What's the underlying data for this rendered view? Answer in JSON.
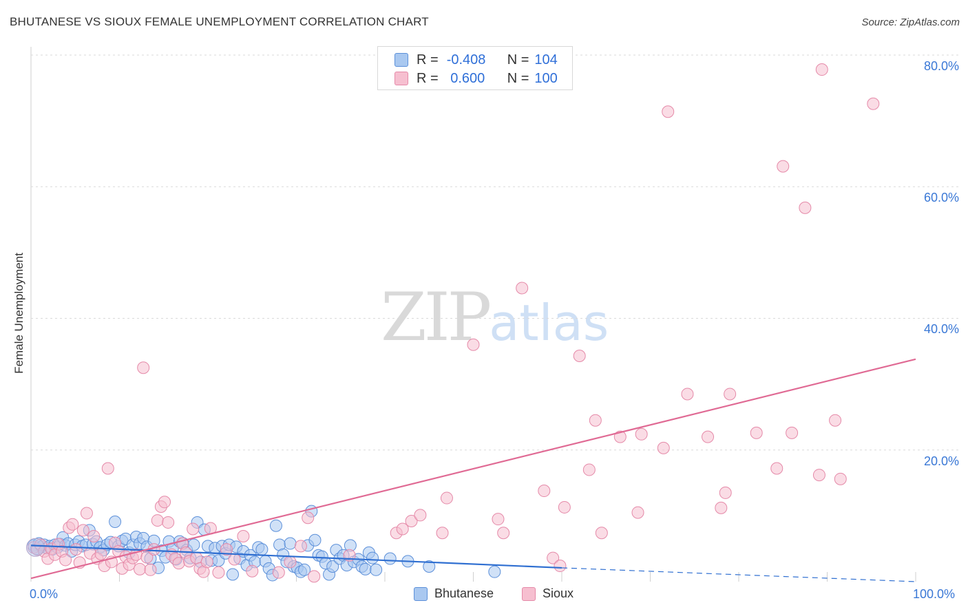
{
  "header": {
    "title": "BHUTANESE VS SIOUX FEMALE UNEMPLOYMENT CORRELATION CHART",
    "source": "Source: ZipAtlas.com"
  },
  "watermark": {
    "zip": "ZIP",
    "atlas": "atlas"
  },
  "colors": {
    "bhutanese_fill": "#a9c8f0",
    "bhutanese_stroke": "#5b8fd9",
    "bhutanese_line": "#2f6fd1",
    "sioux_fill": "#f6bfd0",
    "sioux_stroke": "#e589a8",
    "sioux_line": "#e06a94",
    "tick_label": "#3a78d6",
    "grid": "#d9d9d9"
  },
  "legend": {
    "rows": [
      {
        "r_label": "R =",
        "r_value": "-0.408",
        "n_label": "N =",
        "n_value": "104"
      },
      {
        "r_label": "R =",
        "r_value": " 0.600",
        "n_label": "N =",
        "n_value": "100"
      }
    ],
    "series_names": [
      "Bhutanese",
      "Sioux"
    ]
  },
  "chart_data": {
    "type": "scatter",
    "title": "BHUTANESE VS SIOUX FEMALE UNEMPLOYMENT CORRELATION CHART",
    "xlabel": "",
    "ylabel": "Female Unemployment",
    "xlim": [
      0,
      100
    ],
    "ylim": [
      0,
      80
    ],
    "x_tick_labels": [
      "0.0%",
      "100.0%"
    ],
    "y_ticks": [
      20,
      40,
      60,
      80
    ],
    "y_tick_labels": [
      "20.0%",
      "40.0%",
      "60.0%",
      "80.0%"
    ],
    "grid": true,
    "series": [
      {
        "name": "Bhutanese",
        "r": -0.408,
        "n": 104,
        "trend": {
          "x0": 0,
          "y0": 5.5,
          "x1": 60,
          "y1": 2.1,
          "dash_to": 100,
          "dash_y": 0.0
        },
        "points": [
          [
            0.3,
            5.5
          ],
          [
            0.6,
            5.0
          ],
          [
            0.9,
            5.8
          ],
          [
            1.2,
            5.3
          ],
          [
            1.5,
            5.6
          ],
          [
            1.8,
            5.1
          ],
          [
            2.1,
            5.4
          ],
          [
            2.4,
            4.9
          ],
          [
            2.7,
            5.6
          ],
          [
            3.0,
            5.2
          ],
          [
            3.3,
            5.7
          ],
          [
            3.6,
            6.7
          ],
          [
            3.9,
            5.5
          ],
          [
            4.2,
            5.8
          ],
          [
            4.6,
            4.6
          ],
          [
            5.0,
            5.6
          ],
          [
            5.4,
            6.1
          ],
          [
            5.8,
            5.4
          ],
          [
            6.2,
            5.6
          ],
          [
            6.6,
            7.8
          ],
          [
            7.0,
            5.7
          ],
          [
            7.4,
            6.1
          ],
          [
            7.8,
            5.2
          ],
          [
            8.2,
            4.8
          ],
          [
            8.6,
            5.6
          ],
          [
            9.0,
            6.0
          ],
          [
            9.5,
            9.1
          ],
          [
            9.9,
            5.4
          ],
          [
            10.3,
            6.2
          ],
          [
            10.7,
            6.5
          ],
          [
            11.1,
            4.4
          ],
          [
            11.5,
            5.6
          ],
          [
            11.9,
            6.8
          ],
          [
            12.3,
            5.8
          ],
          [
            12.7,
            6.6
          ],
          [
            13.1,
            5.3
          ],
          [
            13.5,
            3.5
          ],
          [
            13.9,
            6.2
          ],
          [
            14.4,
            2.1
          ],
          [
            14.8,
            4.7
          ],
          [
            15.2,
            3.7
          ],
          [
            15.6,
            6.1
          ],
          [
            16.0,
            5.0
          ],
          [
            16.4,
            3.4
          ],
          [
            16.8,
            6.1
          ],
          [
            17.2,
            5.8
          ],
          [
            17.6,
            4.8
          ],
          [
            18.0,
            3.6
          ],
          [
            18.4,
            5.6
          ],
          [
            18.8,
            9.0
          ],
          [
            19.2,
            3.0
          ],
          [
            19.6,
            7.9
          ],
          [
            20.0,
            5.4
          ],
          [
            20.4,
            3.2
          ],
          [
            20.8,
            5.1
          ],
          [
            21.2,
            3.2
          ],
          [
            21.6,
            5.4
          ],
          [
            22.0,
            4.3
          ],
          [
            22.4,
            5.6
          ],
          [
            22.8,
            1.1
          ],
          [
            23.2,
            5.3
          ],
          [
            23.6,
            3.5
          ],
          [
            24.0,
            4.6
          ],
          [
            24.4,
            2.5
          ],
          [
            24.8,
            4.0
          ],
          [
            25.3,
            3.0
          ],
          [
            25.7,
            5.2
          ],
          [
            26.1,
            4.9
          ],
          [
            26.5,
            3.1
          ],
          [
            26.9,
            2.0
          ],
          [
            27.3,
            1.0
          ],
          [
            27.7,
            8.5
          ],
          [
            28.1,
            5.6
          ],
          [
            28.5,
            4.1
          ],
          [
            28.9,
            3.0
          ],
          [
            29.3,
            5.8
          ],
          [
            29.7,
            2.3
          ],
          [
            30.1,
            2.1
          ],
          [
            30.5,
            1.5
          ],
          [
            30.9,
            1.8
          ],
          [
            31.3,
            5.5
          ],
          [
            31.7,
            10.7
          ],
          [
            32.1,
            6.3
          ],
          [
            32.5,
            4.0
          ],
          [
            32.9,
            3.8
          ],
          [
            33.3,
            2.8
          ],
          [
            33.7,
            1.1
          ],
          [
            34.1,
            2.3
          ],
          [
            34.5,
            4.8
          ],
          [
            34.9,
            3.5
          ],
          [
            35.3,
            4.0
          ],
          [
            35.7,
            2.5
          ],
          [
            36.1,
            5.5
          ],
          [
            36.5,
            3.0
          ],
          [
            37.0,
            3.4
          ],
          [
            37.4,
            2.3
          ],
          [
            37.8,
            1.9
          ],
          [
            38.2,
            4.4
          ],
          [
            38.6,
            3.6
          ],
          [
            39.0,
            1.8
          ],
          [
            40.6,
            3.5
          ],
          [
            42.6,
            3.1
          ],
          [
            52.4,
            1.5
          ],
          [
            45.0,
            2.3
          ]
        ]
      },
      {
        "name": "Sioux",
        "r": 0.6,
        "n": 100,
        "trend": {
          "x0": 0,
          "y0": 0.5,
          "x1": 100,
          "y1": 33.8
        },
        "points": [
          [
            0.3,
            5.2
          ],
          [
            0.7,
            4.9
          ],
          [
            1.1,
            5.6
          ],
          [
            1.5,
            4.6
          ],
          [
            1.9,
            3.5
          ],
          [
            2.3,
            5.0
          ],
          [
            2.7,
            4.1
          ],
          [
            3.1,
            5.7
          ],
          [
            3.5,
            4.6
          ],
          [
            3.9,
            3.3
          ],
          [
            4.3,
            8.2
          ],
          [
            4.7,
            8.7
          ],
          [
            5.1,
            4.9
          ],
          [
            5.5,
            2.9
          ],
          [
            5.9,
            7.8
          ],
          [
            6.3,
            10.4
          ],
          [
            6.7,
            4.3
          ],
          [
            7.1,
            6.9
          ],
          [
            7.5,
            3.5
          ],
          [
            7.9,
            4.2
          ],
          [
            8.3,
            2.4
          ],
          [
            8.7,
            17.2
          ],
          [
            9.1,
            3.0
          ],
          [
            9.5,
            5.9
          ],
          [
            9.9,
            4.6
          ],
          [
            10.3,
            2.0
          ],
          [
            10.7,
            3.8
          ],
          [
            11.1,
            2.6
          ],
          [
            11.5,
            3.6
          ],
          [
            11.9,
            4.1
          ],
          [
            12.3,
            1.9
          ],
          [
            12.7,
            32.5
          ],
          [
            13.1,
            3.7
          ],
          [
            13.5,
            1.8
          ],
          [
            13.9,
            4.9
          ],
          [
            14.3,
            9.3
          ],
          [
            14.7,
            11.4
          ],
          [
            15.1,
            12.1
          ],
          [
            15.5,
            9.0
          ],
          [
            15.9,
            4.1
          ],
          [
            16.3,
            3.5
          ],
          [
            16.7,
            2.8
          ],
          [
            17.1,
            5.8
          ],
          [
            17.5,
            4.4
          ],
          [
            17.9,
            3.1
          ],
          [
            18.3,
            8.0
          ],
          [
            18.7,
            3.6
          ],
          [
            19.1,
            2.0
          ],
          [
            19.5,
            1.5
          ],
          [
            19.9,
            3.0
          ],
          [
            20.3,
            8.1
          ],
          [
            21.2,
            1.4
          ],
          [
            22.1,
            4.9
          ],
          [
            23.0,
            3.4
          ],
          [
            24.0,
            6.9
          ],
          [
            25.0,
            1.6
          ],
          [
            28.0,
            1.4
          ],
          [
            29.3,
            3.0
          ],
          [
            30.5,
            5.4
          ],
          [
            31.3,
            9.7
          ],
          [
            32.0,
            0.8
          ],
          [
            36.0,
            4.0
          ],
          [
            41.3,
            7.4
          ],
          [
            42.0,
            8.0
          ],
          [
            43.0,
            9.2
          ],
          [
            44.0,
            10.1
          ],
          [
            46.5,
            7.4
          ],
          [
            47.0,
            12.7
          ],
          [
            50.0,
            36.0
          ],
          [
            52.8,
            9.5
          ],
          [
            53.4,
            7.4
          ],
          [
            55.5,
            44.6
          ],
          [
            58.0,
            13.8
          ],
          [
            59.0,
            3.6
          ],
          [
            59.8,
            2.4
          ],
          [
            60.3,
            11.3
          ],
          [
            62.0,
            34.3
          ],
          [
            63.1,
            17.0
          ],
          [
            63.8,
            24.5
          ],
          [
            64.5,
            7.4
          ],
          [
            66.6,
            22.0
          ],
          [
            68.6,
            10.5
          ],
          [
            69.0,
            22.4
          ],
          [
            71.5,
            20.3
          ],
          [
            72.0,
            71.4
          ],
          [
            74.2,
            28.5
          ],
          [
            76.5,
            22.0
          ],
          [
            78.0,
            11.2
          ],
          [
            78.5,
            13.5
          ],
          [
            79.0,
            28.5
          ],
          [
            82.0,
            22.6
          ],
          [
            84.3,
            17.2
          ],
          [
            85.0,
            63.1
          ],
          [
            86.0,
            22.6
          ],
          [
            87.5,
            56.8
          ],
          [
            89.1,
            16.2
          ],
          [
            89.4,
            77.8
          ],
          [
            90.9,
            24.5
          ],
          [
            91.5,
            15.6
          ],
          [
            95.2,
            72.6
          ]
        ]
      }
    ]
  }
}
